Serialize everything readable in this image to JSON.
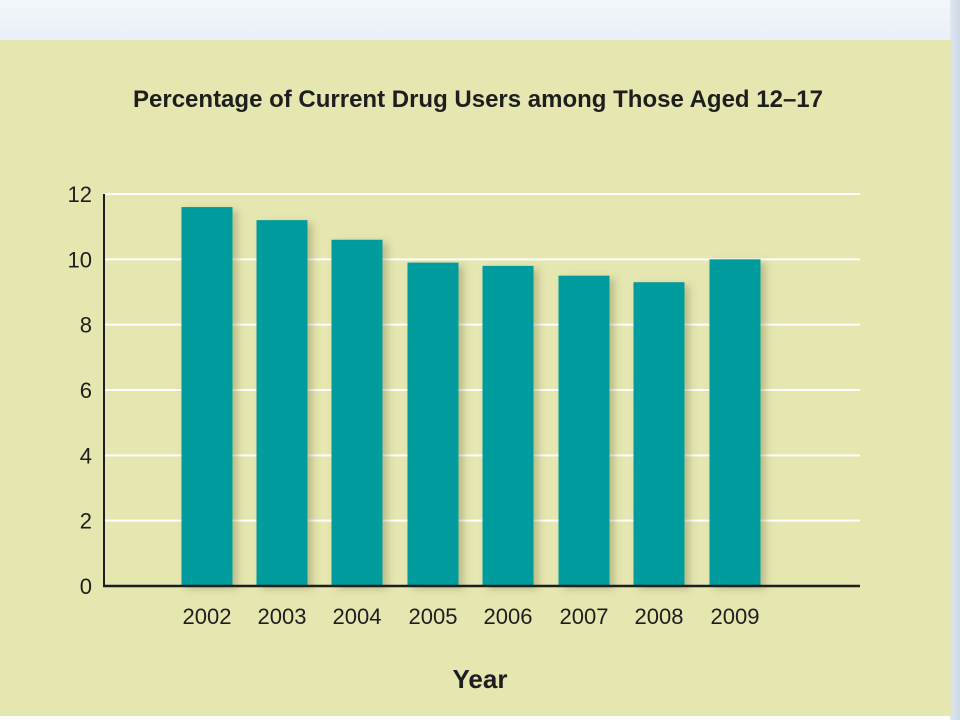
{
  "colors": {
    "bar": "#009b9c",
    "panel": "#e5e6b0",
    "grid": "#ffffff",
    "axis": "#1e1e1e"
  },
  "chart_data": {
    "type": "bar",
    "title": "Percentage of Current Drug Users among Those Aged 12–17",
    "xlabel": "Year",
    "ylabel": "",
    "categories": [
      "2002",
      "2003",
      "2004",
      "2005",
      "2006",
      "2007",
      "2008",
      "2009"
    ],
    "values": [
      11.6,
      11.2,
      10.6,
      9.9,
      9.8,
      9.5,
      9.3,
      10.0
    ],
    "ylim": [
      0,
      12
    ],
    "yticks": [
      0,
      2,
      4,
      6,
      8,
      10,
      12
    ],
    "grid": true,
    "legend": "none"
  }
}
